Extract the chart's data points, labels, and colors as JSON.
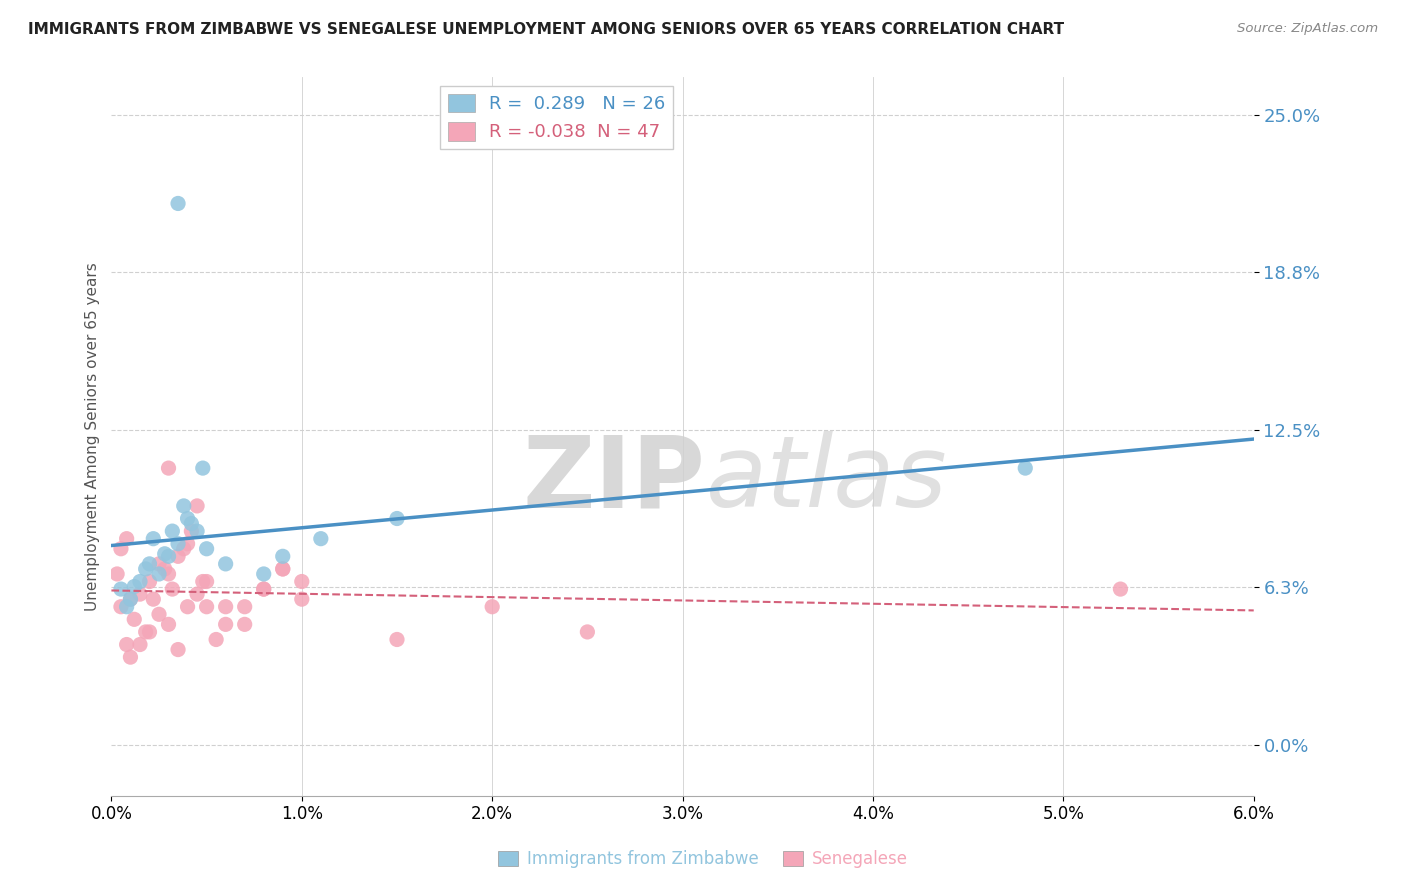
{
  "title": "IMMIGRANTS FROM ZIMBABWE VS SENEGALESE UNEMPLOYMENT AMONG SENIORS OVER 65 YEARS CORRELATION CHART",
  "source": "Source: ZipAtlas.com",
  "ylabel": "Unemployment Among Seniors over 65 years",
  "xlabel_blue": "Immigrants from Zimbabwe",
  "xlabel_pink": "Senegalese",
  "xlim": [
    0.0,
    0.06
  ],
  "ylim": [
    -0.02,
    0.265
  ],
  "yticks": [
    0.0,
    0.063,
    0.125,
    0.188,
    0.25
  ],
  "ytick_labels": [
    "0.0%",
    "6.3%",
    "12.5%",
    "18.8%",
    "25.0%"
  ],
  "xticks": [
    0.0,
    0.01,
    0.02,
    0.03,
    0.04,
    0.05,
    0.06
  ],
  "xtick_labels": [
    "0.0%",
    "1.0%",
    "2.0%",
    "3.0%",
    "4.0%",
    "5.0%",
    "6.0%"
  ],
  "blue_R": 0.289,
  "blue_N": 26,
  "pink_R": -0.038,
  "pink_N": 47,
  "blue_color": "#92c5de",
  "pink_color": "#f4a6b8",
  "trend_blue": "#4a90c4",
  "trend_pink": "#d4607a",
  "watermark_zip": "ZIP",
  "watermark_atlas": "atlas",
  "blue_scatter_x": [
    0.0005,
    0.001,
    0.0015,
    0.002,
    0.0025,
    0.003,
    0.0035,
    0.004,
    0.0045,
    0.005,
    0.0008,
    0.0012,
    0.0018,
    0.0022,
    0.0028,
    0.0032,
    0.0038,
    0.0042,
    0.0048,
    0.006,
    0.008,
    0.009,
    0.011,
    0.015,
    0.048,
    0.0035
  ],
  "blue_scatter_y": [
    0.062,
    0.058,
    0.065,
    0.072,
    0.068,
    0.075,
    0.08,
    0.09,
    0.085,
    0.078,
    0.055,
    0.063,
    0.07,
    0.082,
    0.076,
    0.085,
    0.095,
    0.088,
    0.11,
    0.072,
    0.068,
    0.075,
    0.082,
    0.09,
    0.11,
    0.215
  ],
  "pink_scatter_x": [
    0.0003,
    0.0005,
    0.0008,
    0.001,
    0.0012,
    0.0015,
    0.0018,
    0.002,
    0.0022,
    0.0025,
    0.0028,
    0.003,
    0.0032,
    0.0035,
    0.0038,
    0.004,
    0.0042,
    0.0045,
    0.0048,
    0.005,
    0.0055,
    0.006,
    0.007,
    0.008,
    0.009,
    0.01,
    0.0005,
    0.0008,
    0.001,
    0.0015,
    0.002,
    0.0025,
    0.003,
    0.0035,
    0.004,
    0.0045,
    0.005,
    0.006,
    0.007,
    0.008,
    0.009,
    0.01,
    0.015,
    0.02,
    0.025,
    0.053,
    0.003
  ],
  "pink_scatter_y": [
    0.068,
    0.055,
    0.04,
    0.035,
    0.05,
    0.06,
    0.045,
    0.065,
    0.058,
    0.072,
    0.07,
    0.068,
    0.062,
    0.075,
    0.078,
    0.08,
    0.085,
    0.095,
    0.065,
    0.055,
    0.042,
    0.048,
    0.055,
    0.062,
    0.07,
    0.065,
    0.078,
    0.082,
    0.058,
    0.04,
    0.045,
    0.052,
    0.048,
    0.038,
    0.055,
    0.06,
    0.065,
    0.055,
    0.048,
    0.062,
    0.07,
    0.058,
    0.042,
    0.055,
    0.045,
    0.062,
    0.11
  ]
}
